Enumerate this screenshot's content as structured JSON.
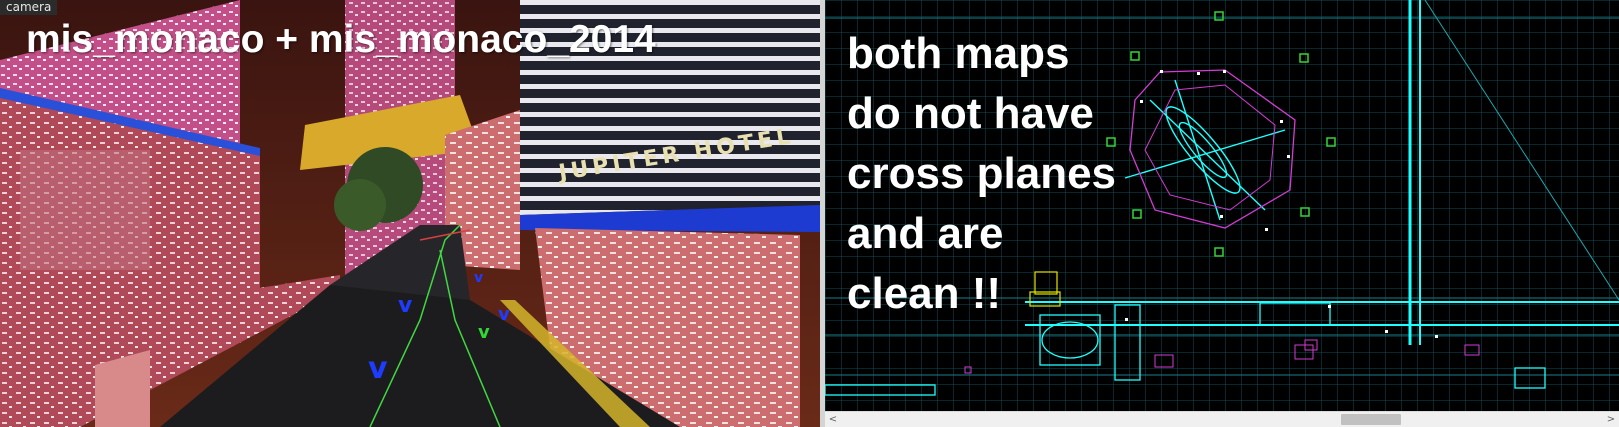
{
  "camera_viewport": {
    "label": "camera",
    "overlay_title": "mis_monaco + mis_monaco_2014",
    "scene_icon": "3d-city-street-render"
  },
  "top_viewport": {
    "overlay_note_lines": [
      "both maps",
      "do not have",
      "cross planes",
      "and are",
      "clean !!"
    ],
    "scene_icon": "2d-wireframe-grid-map",
    "scrollbar": {
      "left_arrow": "<",
      "right_arrow": ">",
      "position": 0.65
    }
  },
  "colors": {
    "grid_line": "#0d4f57",
    "grid_major": "#19808a",
    "wire_cyan": "#20ffff",
    "wire_magenta": "#d43cd4",
    "wire_yellow": "#e6e600",
    "marker_green": "#35d535",
    "camera_label_bg": "#2b2b2b",
    "overlay_text": "#ffffff"
  }
}
